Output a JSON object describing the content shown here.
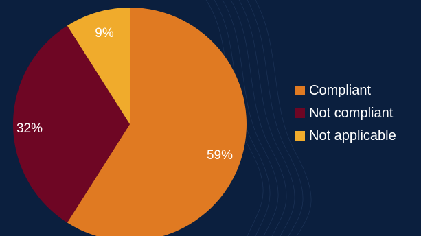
{
  "chart_data": {
    "type": "pie",
    "title": "",
    "categories": [
      "Compliant",
      "Not compliant",
      "Not applicable"
    ],
    "values": [
      59,
      32,
      9
    ],
    "value_labels": [
      "59%",
      "32%",
      "9%"
    ],
    "colors": [
      "#e07a22",
      "#6e0624",
      "#f0ab2c"
    ],
    "start_angle": "12 o'clock",
    "direction": "clockwise",
    "legend_position": "right"
  },
  "background_color": "#0b1f3e"
}
